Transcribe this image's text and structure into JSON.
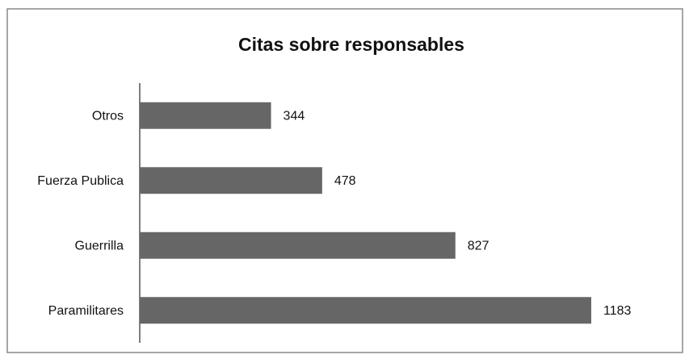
{
  "chart_data": {
    "type": "hbar",
    "title": "Citas sobre responsables",
    "categories": [
      "Otros",
      "Fuerza Publica",
      "Guerrilla",
      "Paramilitares"
    ],
    "values": [
      344,
      478,
      827,
      1183
    ],
    "color": "#666666"
  }
}
